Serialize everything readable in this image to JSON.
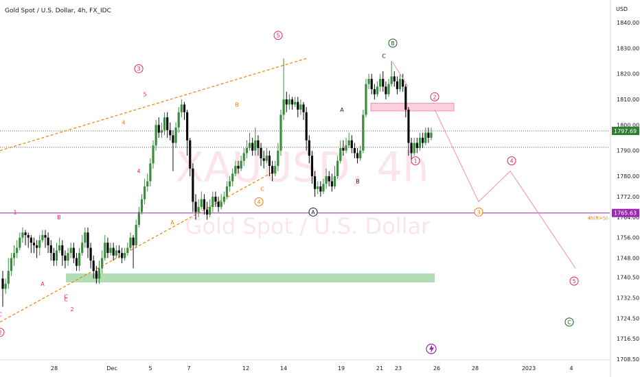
{
  "header": {
    "title": "Gold Spot / U.S. Dollar, 4h, FX_IDC"
  },
  "watermark": {
    "symbol": "XAUUSD, 4h",
    "description": "Gold Spot / U.S. Dollar"
  },
  "colors": {
    "up": "#388e3c",
    "down": "#0a0a0a",
    "wave": "#e91e63",
    "trend": "#f57c00",
    "resistance_zone": "#f8bbd0",
    "support_zone": "#a5d6a7",
    "horizontal_line": "#9c27b0",
    "last_price_tag": "#2e7d32",
    "label_tag": "#9c27b0"
  },
  "chart_data": {
    "type": "candlestick",
    "y_axis_unit": "USD",
    "y_ticks": [
      1840.0,
      1830.0,
      1820.0,
      1810.0,
      1800.0,
      1790.0,
      1780.0,
      1772.0,
      1764.0,
      1756.0,
      1748.0,
      1740.5,
      1732.5,
      1724.5,
      1716.5,
      1708.5
    ],
    "x_ticks": [
      "28",
      "Dec",
      "5",
      "7",
      "12",
      "14",
      "19",
      "21",
      "23",
      "26",
      "28",
      "2023",
      "4"
    ],
    "current_price": 1797.69,
    "horizontal_line": {
      "price": 1765.63,
      "label": "4h(R>S)"
    },
    "resistance_zone": [
      1805.5,
      1808.5
    ],
    "support_zone": [
      1738.5,
      1742.0
    ],
    "trend_channel": [
      {
        "from": [
          0,
          1790
        ],
        "to": [
          446,
          1826
        ]
      },
      {
        "from": [
          0,
          1723
        ],
        "to": [
          400,
          1782
        ]
      }
    ],
    "projection": [
      {
        "x": 633,
        "y": 1806
      },
      {
        "x": 697,
        "y": 1770
      },
      {
        "x": 743,
        "y": 1782
      },
      {
        "x": 838,
        "y": 1744
      }
    ],
    "candles": [
      [
        1740,
        1736,
        1729,
        1743
      ],
      [
        1736,
        1738,
        1734,
        1740
      ],
      [
        1738,
        1743,
        1736,
        1748
      ],
      [
        1743,
        1748,
        1741,
        1750
      ],
      [
        1748,
        1750,
        1745,
        1753
      ],
      [
        1750,
        1752,
        1748,
        1755
      ],
      [
        1752,
        1756,
        1751,
        1758
      ],
      [
        1756,
        1758,
        1754,
        1760
      ],
      [
        1758,
        1757,
        1753,
        1759
      ],
      [
        1757,
        1756,
        1752,
        1758
      ],
      [
        1756,
        1754,
        1750,
        1757
      ],
      [
        1754,
        1753,
        1750,
        1756
      ],
      [
        1753,
        1752,
        1748,
        1755
      ],
      [
        1752,
        1755,
        1749,
        1757
      ],
      [
        1755,
        1757,
        1754,
        1759
      ],
      [
        1757,
        1756,
        1752,
        1759
      ],
      [
        1756,
        1753,
        1750,
        1758
      ],
      [
        1753,
        1750,
        1747,
        1755
      ],
      [
        1750,
        1747,
        1745,
        1752
      ],
      [
        1747,
        1751,
        1745,
        1754
      ],
      [
        1751,
        1753,
        1750,
        1756
      ],
      [
        1753,
        1749,
        1745,
        1755
      ],
      [
        1749,
        1747,
        1744,
        1751
      ],
      [
        1747,
        1750,
        1745,
        1752
      ],
      [
        1750,
        1752,
        1748,
        1754
      ],
      [
        1752,
        1748,
        1746,
        1754
      ],
      [
        1748,
        1745,
        1743,
        1750
      ],
      [
        1745,
        1750,
        1743,
        1752
      ],
      [
        1750,
        1754,
        1749,
        1757
      ],
      [
        1754,
        1758,
        1752,
        1760
      ],
      [
        1758,
        1752,
        1748,
        1760
      ],
      [
        1752,
        1747,
        1744,
        1754
      ],
      [
        1747,
        1743,
        1740,
        1749
      ],
      [
        1743,
        1740,
        1738,
        1745
      ],
      [
        1740,
        1744,
        1738,
        1747
      ],
      [
        1744,
        1748,
        1742,
        1751
      ],
      [
        1748,
        1754,
        1747,
        1757
      ],
      [
        1754,
        1750,
        1748,
        1756
      ],
      [
        1750,
        1752,
        1749,
        1754
      ],
      [
        1752,
        1749,
        1747,
        1754
      ],
      [
        1749,
        1751,
        1748,
        1753
      ],
      [
        1751,
        1750,
        1748,
        1753
      ],
      [
        1750,
        1748,
        1746,
        1752
      ],
      [
        1748,
        1750,
        1747,
        1752
      ],
      [
        1750,
        1752,
        1749,
        1754
      ],
      [
        1752,
        1756,
        1751,
        1758
      ],
      [
        1756,
        1753,
        1744,
        1757
      ],
      [
        1753,
        1761,
        1752,
        1763
      ],
      [
        1761,
        1766,
        1760,
        1768
      ],
      [
        1766,
        1771,
        1765,
        1773
      ],
      [
        1771,
        1776,
        1769,
        1779
      ],
      [
        1776,
        1778,
        1774,
        1781
      ],
      [
        1778,
        1785,
        1776,
        1787
      ],
      [
        1785,
        1792,
        1783,
        1794
      ],
      [
        1792,
        1800,
        1790,
        1802
      ],
      [
        1800,
        1797,
        1795,
        1803
      ],
      [
        1797,
        1798,
        1795,
        1801
      ],
      [
        1798,
        1803,
        1796,
        1805
      ],
      [
        1803,
        1798,
        1795,
        1805
      ],
      [
        1798,
        1796,
        1794,
        1801
      ],
      [
        1796,
        1793,
        1782,
        1798
      ],
      [
        1793,
        1799,
        1791,
        1801
      ],
      [
        1799,
        1805,
        1797,
        1807
      ],
      [
        1805,
        1808,
        1803,
        1810
      ],
      [
        1808,
        1805,
        1802,
        1809
      ],
      [
        1805,
        1794,
        1788,
        1806
      ],
      [
        1794,
        1783,
        1780,
        1795
      ],
      [
        1783,
        1770,
        1766,
        1785
      ],
      [
        1770,
        1766,
        1763,
        1773
      ],
      [
        1766,
        1768,
        1764,
        1771
      ],
      [
        1768,
        1771,
        1767,
        1774
      ],
      [
        1771,
        1767,
        1765,
        1773
      ],
      [
        1767,
        1765,
        1763,
        1770
      ],
      [
        1765,
        1768,
        1764,
        1771
      ],
      [
        1768,
        1772,
        1766,
        1774
      ],
      [
        1772,
        1770,
        1768,
        1774
      ],
      [
        1770,
        1768,
        1766,
        1772
      ],
      [
        1768,
        1770,
        1767,
        1773
      ],
      [
        1770,
        1772,
        1769,
        1774
      ],
      [
        1772,
        1776,
        1771,
        1778
      ],
      [
        1776,
        1778,
        1774,
        1780
      ],
      [
        1778,
        1781,
        1776,
        1783
      ],
      [
        1781,
        1784,
        1780,
        1786
      ],
      [
        1784,
        1783,
        1781,
        1786
      ],
      [
        1783,
        1786,
        1782,
        1788
      ],
      [
        1786,
        1789,
        1784,
        1791
      ],
      [
        1789,
        1791,
        1787,
        1794
      ],
      [
        1791,
        1793,
        1790,
        1797
      ],
      [
        1793,
        1790,
        1788,
        1795
      ],
      [
        1790,
        1794,
        1788,
        1799
      ],
      [
        1794,
        1791,
        1788,
        1796
      ],
      [
        1791,
        1787,
        1784,
        1793
      ],
      [
        1787,
        1786,
        1783,
        1790
      ],
      [
        1786,
        1788,
        1785,
        1791
      ],
      [
        1788,
        1784,
        1780,
        1790
      ],
      [
        1784,
        1781,
        1778,
        1786
      ],
      [
        1781,
        1784,
        1780,
        1786
      ],
      [
        1784,
        1790,
        1782,
        1793
      ],
      [
        1790,
        1804,
        1788,
        1806
      ],
      [
        1804,
        1810,
        1802,
        1826
      ],
      [
        1810,
        1808,
        1805,
        1813
      ],
      [
        1808,
        1810,
        1806,
        1812
      ],
      [
        1810,
        1808,
        1806,
        1811
      ],
      [
        1808,
        1809,
        1807,
        1811
      ],
      [
        1809,
        1806,
        1803,
        1811
      ],
      [
        1806,
        1808,
        1804,
        1810
      ],
      [
        1808,
        1805,
        1802,
        1809
      ],
      [
        1805,
        1794,
        1790,
        1807
      ],
      [
        1794,
        1788,
        1785,
        1796
      ],
      [
        1788,
        1780,
        1777,
        1790
      ],
      [
        1780,
        1775,
        1772,
        1782
      ],
      [
        1775,
        1776,
        1773,
        1778
      ],
      [
        1776,
        1774,
        1772,
        1778
      ],
      [
        1774,
        1777,
        1773,
        1779
      ],
      [
        1777,
        1780,
        1775,
        1783
      ],
      [
        1780,
        1778,
        1776,
        1782
      ],
      [
        1778,
        1776,
        1774,
        1781
      ],
      [
        1776,
        1780,
        1775,
        1784
      ],
      [
        1780,
        1786,
        1779,
        1788
      ],
      [
        1786,
        1791,
        1785,
        1794
      ],
      [
        1791,
        1790,
        1788,
        1794
      ],
      [
        1790,
        1792,
        1789,
        1795
      ],
      [
        1792,
        1794,
        1791,
        1797
      ],
      [
        1794,
        1791,
        1789,
        1796
      ],
      [
        1791,
        1789,
        1787,
        1793
      ],
      [
        1789,
        1787,
        1785,
        1791
      ],
      [
        1787,
        1790,
        1786,
        1792
      ],
      [
        1790,
        1804,
        1789,
        1806
      ],
      [
        1804,
        1816,
        1803,
        1818
      ],
      [
        1816,
        1818,
        1814,
        1820
      ],
      [
        1818,
        1814,
        1812,
        1820
      ],
      [
        1814,
        1812,
        1810,
        1816
      ],
      [
        1812,
        1815,
        1811,
        1817
      ],
      [
        1815,
        1818,
        1813,
        1820
      ],
      [
        1818,
        1815,
        1813,
        1821
      ],
      [
        1815,
        1812,
        1810,
        1817
      ],
      [
        1812,
        1816,
        1811,
        1818
      ],
      [
        1816,
        1819,
        1815,
        1825
      ],
      [
        1819,
        1817,
        1815,
        1821
      ],
      [
        1817,
        1814,
        1812,
        1819
      ],
      [
        1814,
        1818,
        1813,
        1820
      ],
      [
        1818,
        1815,
        1813,
        1820
      ],
      [
        1815,
        1806,
        1803,
        1816
      ],
      [
        1806,
        1793,
        1788,
        1807
      ],
      [
        1793,
        1789,
        1786,
        1795
      ],
      [
        1789,
        1793,
        1788,
        1795
      ],
      [
        1793,
        1791,
        1789,
        1795
      ],
      [
        1791,
        1795,
        1790,
        1797
      ],
      [
        1795,
        1793,
        1791,
        1797
      ],
      [
        1793,
        1797,
        1792,
        1799
      ],
      [
        1797,
        1795,
        1793,
        1799
      ],
      [
        1795,
        1797,
        1794,
        1799
      ]
    ],
    "wave_labels": [
      {
        "text": "2",
        "x": 0,
        "y": 1719,
        "style": "circle",
        "color": "wave"
      },
      {
        "text": "C",
        "x": 0,
        "y": 1726,
        "style": "plain",
        "color": "wave"
      },
      {
        "text": "1",
        "x": 22,
        "y": 1766,
        "style": "plain",
        "color": "wave"
      },
      {
        "text": "B",
        "x": 86,
        "y": 1764,
        "style": "plain",
        "color": "wave"
      },
      {
        "text": "A",
        "x": 62,
        "y": 1738,
        "style": "plain",
        "color": "wave"
      },
      {
        "text": "C",
        "x": 96,
        "y": 1733,
        "style": "plain",
        "color": "wave"
      },
      {
        "text": "C",
        "x": 96,
        "y": 1732,
        "style": "plain",
        "color": "wave"
      },
      {
        "text": "2",
        "x": 105,
        "y": 1728,
        "style": "plain",
        "color": "wave"
      },
      {
        "text": "3",
        "x": 202,
        "y": 1822,
        "style": "circle",
        "color": "wave"
      },
      {
        "text": "5",
        "x": 211,
        "y": 1812,
        "style": "plain",
        "color": "wave"
      },
      {
        "text": "4",
        "x": 180,
        "y": 1801,
        "style": "plain",
        "color": "trend"
      },
      {
        "text": "4",
        "x": 202,
        "y": 1782,
        "style": "plain",
        "color": "wave"
      },
      {
        "text": "A",
        "x": 251,
        "y": 1762,
        "style": "plain",
        "color": "trend"
      },
      {
        "text": "5",
        "x": 405,
        "y": 1835,
        "style": "circle",
        "color": "wave"
      },
      {
        "text": "B",
        "x": 345,
        "y": 1808,
        "style": "plain",
        "color": "trend"
      },
      {
        "text": "C",
        "x": 382,
        "y": 1775,
        "style": "plain",
        "color": "trend"
      },
      {
        "text": "4",
        "x": 377,
        "y": 1770,
        "style": "circle",
        "color": "trend"
      },
      {
        "text": "A",
        "x": 456,
        "y": 1766,
        "style": "circle",
        "color": "dark"
      },
      {
        "text": "A",
        "x": 498,
        "y": 1806,
        "style": "plain",
        "color": "dark"
      },
      {
        "text": "B",
        "x": 521,
        "y": 1778,
        "style": "plain",
        "color": "dark"
      },
      {
        "text": "C",
        "x": 559,
        "y": 1827,
        "style": "plain",
        "color": "dark"
      },
      {
        "text": "B",
        "x": 572,
        "y": 1832,
        "style": "circle",
        "color": "green"
      },
      {
        "text": "2",
        "x": 633,
        "y": 1811,
        "style": "circle",
        "color": "wave"
      },
      {
        "text": "1",
        "x": 605,
        "y": 1786,
        "style": "circle",
        "color": "wave"
      },
      {
        "text": "3",
        "x": 697,
        "y": 1766,
        "style": "circle",
        "color": "trend"
      },
      {
        "text": "4",
        "x": 745,
        "y": 1786,
        "style": "circle",
        "color": "wave"
      },
      {
        "text": "5",
        "x": 836,
        "y": 1739,
        "style": "circle",
        "color": "wave"
      },
      {
        "text": "C",
        "x": 829,
        "y": 1723,
        "style": "circle",
        "color": "green"
      }
    ]
  }
}
